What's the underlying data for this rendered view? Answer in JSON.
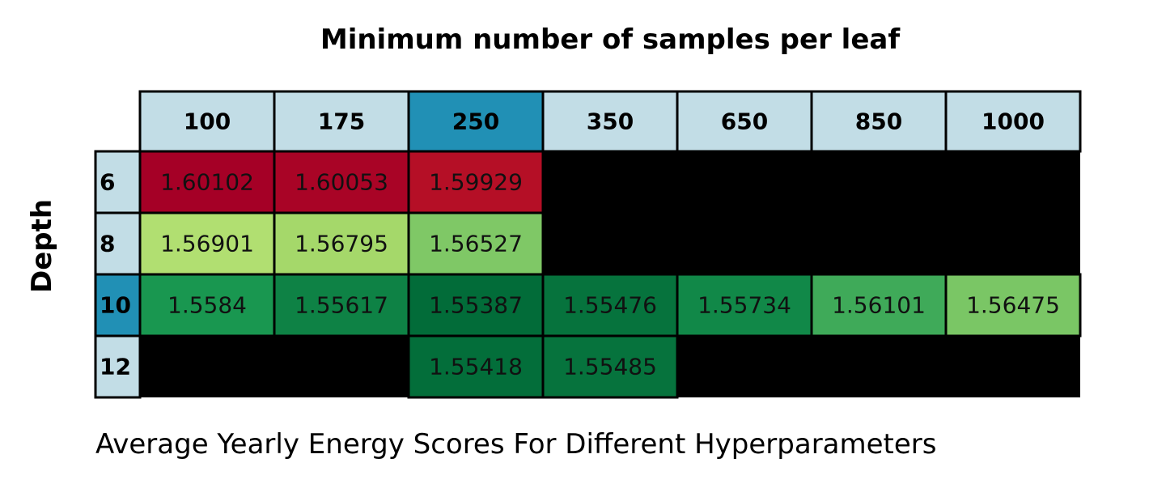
{
  "chart_data": {
    "type": "table",
    "title": "Minimum number of samples per leaf",
    "ylabel": "Depth",
    "caption": "Average Yearly Energy Scores For Different Hyperparameters",
    "columns": [
      "100",
      "175",
      "250",
      "350",
      "650",
      "850",
      "1000"
    ],
    "rows": [
      "6",
      "8",
      "10",
      "12"
    ],
    "highlight_column": "250",
    "highlight_row": "10",
    "cells": [
      [
        "1.60102",
        "1.60053",
        "1.59929",
        null,
        null,
        null,
        null
      ],
      [
        "1.56901",
        "1.56795",
        "1.56527",
        null,
        null,
        null,
        null
      ],
      [
        "1.5584",
        "1.55617",
        "1.55387",
        "1.55476",
        "1.55734",
        "1.56101",
        "1.56475"
      ],
      [
        null,
        null,
        "1.55418",
        "1.55485",
        null,
        null,
        null
      ]
    ],
    "cell_colors": [
      [
        "#a50026",
        "#a90426",
        "#b50f26",
        null,
        null,
        null,
        null
      ],
      [
        "#b1df71",
        "#a5d86a",
        "#7fc866",
        null,
        null,
        null,
        null
      ],
      [
        "#199750",
        "#0e8245",
        "#026c39",
        "#06733d",
        "#118848",
        "#3faa59",
        "#7ac665"
      ],
      [
        null,
        null,
        "#036e3a",
        "#06733d",
        null,
        null,
        null
      ]
    ],
    "colors": {
      "header": "#c2dde6",
      "highlight": "#2190b5",
      "empty": "#000000",
      "grid": "#000000"
    }
  }
}
